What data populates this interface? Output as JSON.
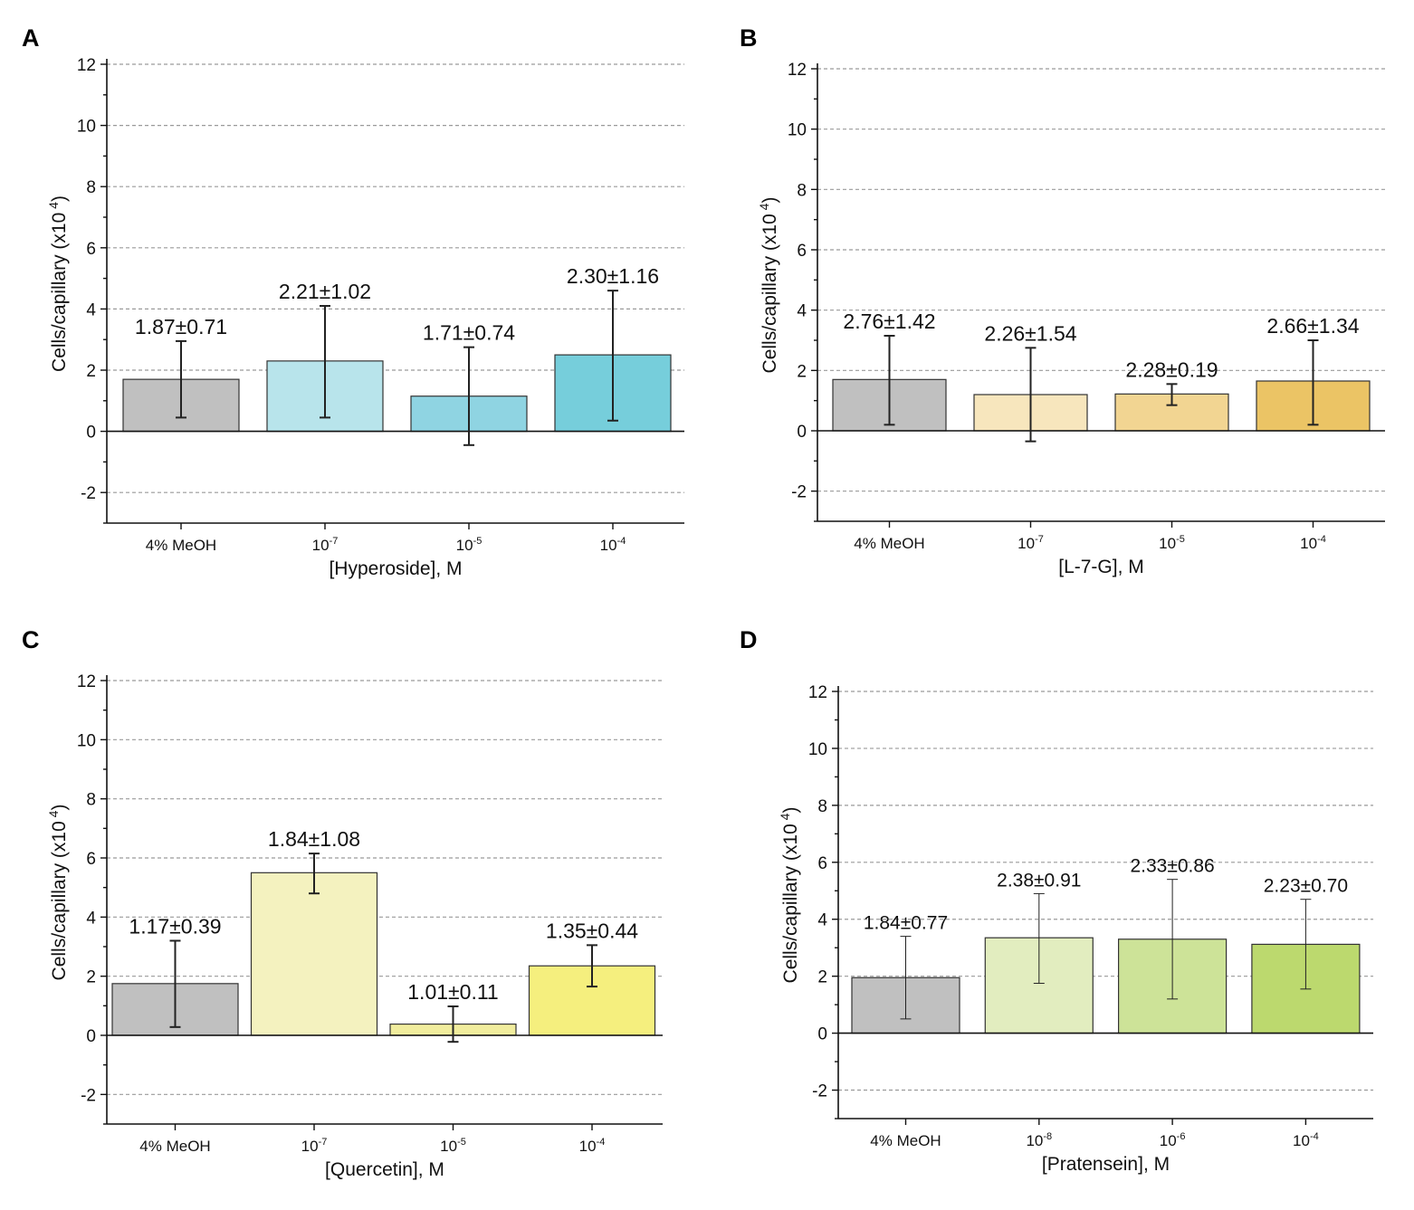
{
  "chart_data": [
    {
      "panel": "A",
      "type": "bar",
      "ylabel_base": "Cells/capillary (x10",
      "ylabel_exp": "4",
      "ylabel_close": ")",
      "xlabel": "[Hyperoside], M",
      "ylim": [
        -3,
        12
      ],
      "yticks": [
        "-2",
        "0",
        "2",
        "4",
        "6",
        "8",
        "10",
        "12"
      ],
      "grid": true,
      "categories": [
        {
          "base": "4% MeOH",
          "exp": ""
        },
        {
          "base": "10",
          "exp": "-7"
        },
        {
          "base": "10",
          "exp": "-5"
        },
        {
          "base": "10",
          "exp": "-4"
        }
      ],
      "values": [
        1.7,
        2.3,
        1.15,
        2.5
      ],
      "err_low": [
        0.45,
        0.45,
        -0.45,
        0.35
      ],
      "err_high": [
        2.95,
        4.1,
        2.75,
        4.6
      ],
      "labels": [
        "1.87±0.71",
        "2.21±1.02",
        "1.71±0.74",
        "2.30±1.16"
      ],
      "colors": [
        "#c0c0c0",
        "#b8e4eb",
        "#8fd4e2",
        "#76cedb"
      ]
    },
    {
      "panel": "B",
      "type": "bar",
      "ylabel_base": "Cells/capillary (x10",
      "ylabel_exp": "4",
      "ylabel_close": ")",
      "xlabel": "[L-7-G], M",
      "ylim": [
        -3,
        12
      ],
      "yticks": [
        "-2",
        "0",
        "2",
        "4",
        "6",
        "8",
        "10",
        "12"
      ],
      "grid": true,
      "categories": [
        {
          "base": "4% MeOH",
          "exp": ""
        },
        {
          "base": "10",
          "exp": "-7"
        },
        {
          "base": "10",
          "exp": "-5"
        },
        {
          "base": "10",
          "exp": "-4"
        }
      ],
      "values": [
        1.7,
        1.2,
        1.22,
        1.65
      ],
      "err_low": [
        0.2,
        -0.35,
        0.85,
        0.2
      ],
      "err_high": [
        3.15,
        2.75,
        1.55,
        3.0
      ],
      "labels": [
        "2.76±1.42",
        "2.26±1.54",
        "2.28±0.19",
        "2.66±1.34"
      ],
      "colors": [
        "#c0c0c0",
        "#f7e6bd",
        "#f2d592",
        "#ebc465"
      ]
    },
    {
      "panel": "C",
      "type": "bar",
      "ylabel_base": "Cells/capillary (x10",
      "ylabel_exp": "4",
      "ylabel_close": ")",
      "xlabel": "[Quercetin], M",
      "ylim": [
        -3,
        12
      ],
      "yticks": [
        "-2",
        "0",
        "2",
        "4",
        "6",
        "8",
        "10",
        "12"
      ],
      "grid": true,
      "categories": [
        {
          "base": "4% MeOH",
          "exp": ""
        },
        {
          "base": "10",
          "exp": "-7"
        },
        {
          "base": "10",
          "exp": "-5"
        },
        {
          "base": "10",
          "exp": "-4"
        }
      ],
      "values": [
        1.75,
        5.5,
        0.38,
        2.35
      ],
      "err_low": [
        0.28,
        4.8,
        -0.22,
        1.65
      ],
      "err_high": [
        3.2,
        6.15,
        0.98,
        3.05
      ],
      "labels": [
        "1.17±0.39",
        "1.84±1.08",
        "1.01±0.11",
        "1.35±0.44"
      ],
      "colors": [
        "#c0c0c0",
        "#f4f2bf",
        "#f1ed9d",
        "#f5ef7e"
      ]
    },
    {
      "panel": "D",
      "type": "bar",
      "ylabel_base": "Cells/capillary (x10",
      "ylabel_exp": "4",
      "ylabel_close": ")",
      "xlabel": "[Pratensein], M",
      "ylim": [
        -3,
        12
      ],
      "yticks": [
        "-2",
        "0",
        "2",
        "4",
        "6",
        "8",
        "10",
        "12"
      ],
      "grid": true,
      "categories": [
        {
          "base": "4% MeOH",
          "exp": ""
        },
        {
          "base": "10",
          "exp": "-8"
        },
        {
          "base": "10",
          "exp": "-6"
        },
        {
          "base": "10",
          "exp": "-4"
        }
      ],
      "values": [
        1.95,
        3.35,
        3.3,
        3.12
      ],
      "err_low": [
        0.5,
        1.75,
        1.2,
        1.55
      ],
      "err_high": [
        3.4,
        4.9,
        5.4,
        4.7
      ],
      "labels": [
        "1.84±0.77",
        "2.38±0.91",
        "2.33±0.86",
        "2.23±0.70"
      ],
      "colors": [
        "#c0c0c0",
        "#e2edbf",
        "#cde398",
        "#bcd96e"
      ]
    }
  ]
}
